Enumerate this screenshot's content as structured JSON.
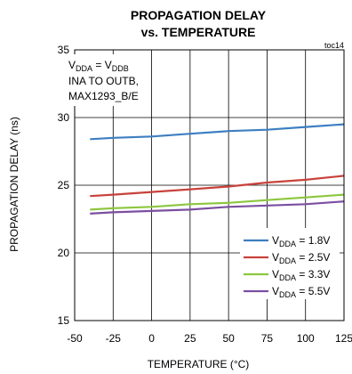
{
  "chart_data": {
    "type": "line",
    "title_line1": "PROPAGATION DELAY",
    "title_line2": "vs. TEMPERATURE",
    "tag": "toc14",
    "xlabel": "TEMPERATURE (°C)",
    "ylabel": "PROPAGATION DELAY (ns)",
    "xlim": [
      -50,
      125
    ],
    "ylim": [
      15,
      35
    ],
    "xticks": [
      -50,
      -25,
      0,
      25,
      50,
      75,
      100,
      125
    ],
    "yticks": [
      15,
      20,
      25,
      30,
      35
    ],
    "grid": true,
    "legend_position": "bottom-right",
    "annotation": {
      "line1_main": "V",
      "line1_sub1": "DDA",
      "line1_mid": " = V",
      "line1_sub2": "DDB",
      "line2": "INA TO OUTB,",
      "line3": "MAX1293_B/E"
    },
    "legend_prefix": "V",
    "legend_sub": "DDA",
    "series": [
      {
        "name": " = 1.8V",
        "color": "#3d7fc1",
        "x": [
          -40,
          -25,
          0,
          25,
          50,
          75,
          100,
          125
        ],
        "y": [
          28.4,
          28.5,
          28.6,
          28.8,
          29.0,
          29.1,
          29.3,
          29.5
        ]
      },
      {
        "name": " = 2.5V",
        "color": "#c8423b",
        "x": [
          -40,
          -25,
          0,
          25,
          50,
          75,
          100,
          125
        ],
        "y": [
          24.2,
          24.3,
          24.5,
          24.7,
          24.9,
          25.2,
          25.4,
          25.7
        ]
      },
      {
        "name": " = 3.3V",
        "color": "#8dc63f",
        "x": [
          -40,
          -25,
          0,
          25,
          50,
          75,
          100,
          125
        ],
        "y": [
          23.2,
          23.3,
          23.4,
          23.6,
          23.7,
          23.9,
          24.1,
          24.3
        ]
      },
      {
        "name": " = 5.5V",
        "color": "#7b4fa0",
        "x": [
          -40,
          -25,
          0,
          25,
          50,
          75,
          100,
          125
        ],
        "y": [
          22.9,
          23.0,
          23.1,
          23.2,
          23.4,
          23.5,
          23.6,
          23.8
        ]
      }
    ]
  }
}
